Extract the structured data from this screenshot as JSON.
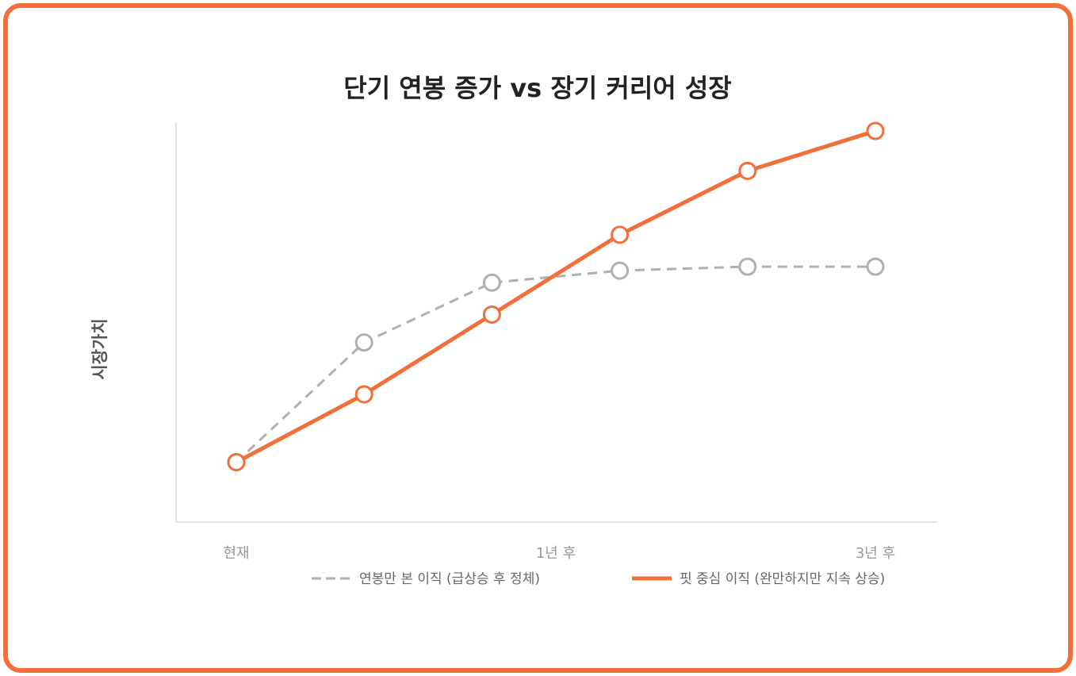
{
  "chart_data": {
    "type": "line",
    "title": "단기 연봉 증가 vs 장기 커리어 성장",
    "xlabel": "",
    "ylabel": "시장가치",
    "x": [
      0,
      1,
      2,
      3,
      4,
      5
    ],
    "x_ticks": [
      {
        "x": 0,
        "label": "현재"
      },
      {
        "x": 2.5,
        "label": "1년 후"
      },
      {
        "x": 5,
        "label": "3년 후"
      }
    ],
    "ylim": [
      0,
      100
    ],
    "grid": false,
    "legend_position": "bottom",
    "series": [
      {
        "name": "연봉만 본 이직 (급상승 후 정체)",
        "color": "#b0b0b0",
        "style": "dashed",
        "values": [
          15,
          45,
          60,
          63,
          64,
          64
        ]
      },
      {
        "name": "핏 중심 이직 (완만하지만 지속 상승)",
        "color": "#f26f3a",
        "style": "solid",
        "values": [
          15,
          32,
          52,
          72,
          88,
          98
        ]
      }
    ]
  }
}
